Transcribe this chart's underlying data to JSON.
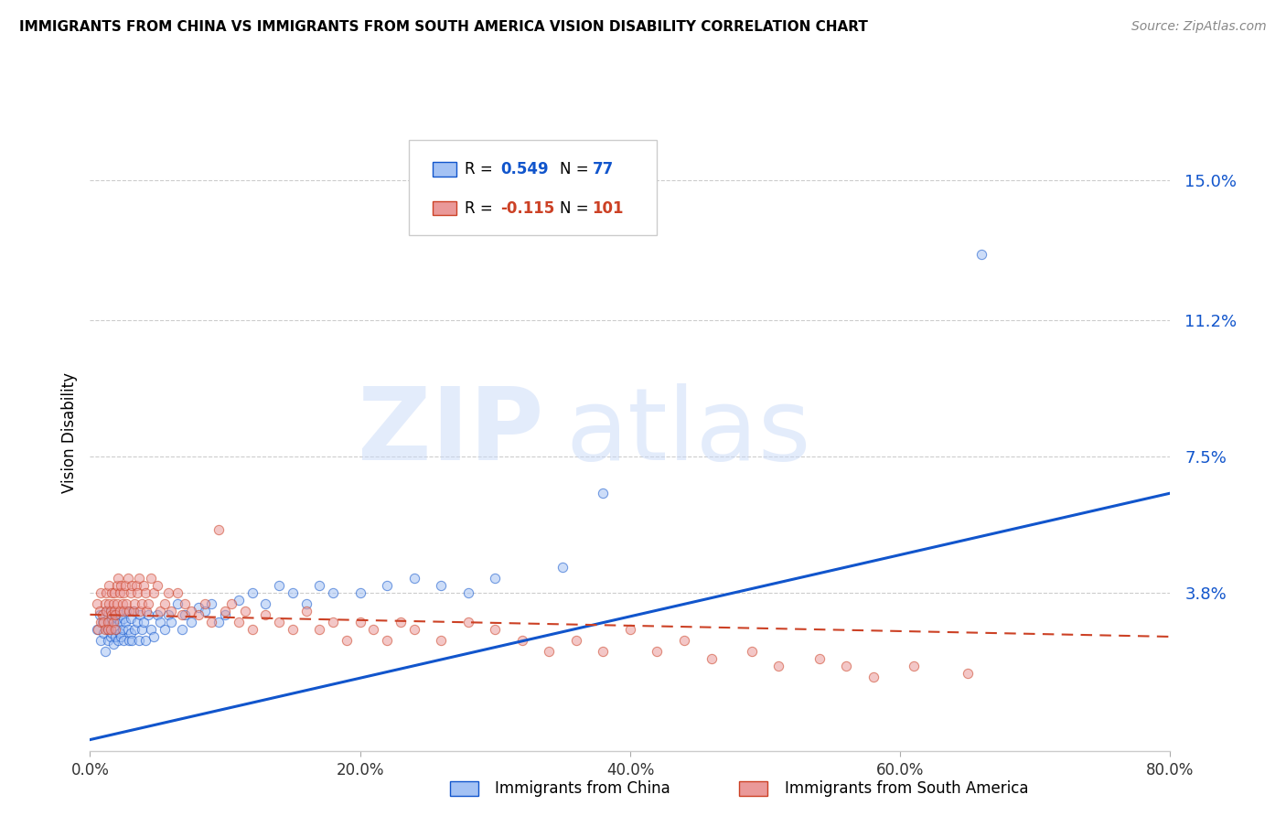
{
  "title": "IMMIGRANTS FROM CHINA VS IMMIGRANTS FROM SOUTH AMERICA VISION DISABILITY CORRELATION CHART",
  "source": "Source: ZipAtlas.com",
  "ylabel": "Vision Disability",
  "yticks": [
    0.038,
    0.075,
    0.112,
    0.15
  ],
  "ytick_labels": [
    "3.8%",
    "7.5%",
    "11.2%",
    "15.0%"
  ],
  "xlim": [
    0.0,
    0.8
  ],
  "ylim": [
    -0.005,
    0.168
  ],
  "china_R": 0.549,
  "china_N": 77,
  "sa_R": -0.115,
  "sa_N": 101,
  "china_color": "#a4c2f4",
  "sa_color": "#ea9999",
  "china_line_color": "#1155cc",
  "sa_line_color": "#cc4125",
  "watermark_zip": "ZIP",
  "watermark_atlas": "atlas",
  "xtick_labels": [
    "0.0%",
    "20.0%",
    "40.0%",
    "60.0%",
    "80.0%"
  ],
  "xtick_vals": [
    0.0,
    0.2,
    0.4,
    0.6,
    0.8
  ],
  "china_line_x0": 0.0,
  "china_line_y0": -0.002,
  "china_line_x1": 0.8,
  "china_line_y1": 0.065,
  "sa_line_x0": 0.0,
  "sa_line_y0": 0.032,
  "sa_line_x1": 0.8,
  "sa_line_y1": 0.026,
  "china_scatter_x": [
    0.005,
    0.007,
    0.008,
    0.009,
    0.01,
    0.011,
    0.012,
    0.013,
    0.013,
    0.014,
    0.015,
    0.015,
    0.016,
    0.016,
    0.017,
    0.018,
    0.018,
    0.019,
    0.02,
    0.02,
    0.021,
    0.022,
    0.022,
    0.023,
    0.023,
    0.024,
    0.025,
    0.025,
    0.026,
    0.027,
    0.028,
    0.029,
    0.03,
    0.03,
    0.031,
    0.032,
    0.033,
    0.035,
    0.036,
    0.037,
    0.038,
    0.04,
    0.041,
    0.043,
    0.045,
    0.047,
    0.05,
    0.052,
    0.055,
    0.058,
    0.06,
    0.065,
    0.068,
    0.07,
    0.075,
    0.08,
    0.085,
    0.09,
    0.095,
    0.1,
    0.11,
    0.12,
    0.13,
    0.14,
    0.15,
    0.16,
    0.17,
    0.18,
    0.2,
    0.22,
    0.24,
    0.26,
    0.28,
    0.3,
    0.35,
    0.38,
    0.66
  ],
  "china_scatter_y": [
    0.028,
    0.032,
    0.025,
    0.03,
    0.027,
    0.022,
    0.033,
    0.028,
    0.025,
    0.03,
    0.026,
    0.033,
    0.027,
    0.031,
    0.024,
    0.029,
    0.032,
    0.026,
    0.028,
    0.031,
    0.025,
    0.03,
    0.027,
    0.032,
    0.026,
    0.028,
    0.031,
    0.025,
    0.03,
    0.033,
    0.028,
    0.025,
    0.027,
    0.031,
    0.025,
    0.033,
    0.028,
    0.03,
    0.025,
    0.032,
    0.028,
    0.03,
    0.025,
    0.032,
    0.028,
    0.026,
    0.032,
    0.03,
    0.028,
    0.032,
    0.03,
    0.035,
    0.028,
    0.032,
    0.03,
    0.034,
    0.033,
    0.035,
    0.03,
    0.032,
    0.036,
    0.038,
    0.035,
    0.04,
    0.038,
    0.035,
    0.04,
    0.038,
    0.038,
    0.04,
    0.042,
    0.04,
    0.038,
    0.042,
    0.045,
    0.065,
    0.13
  ],
  "sa_scatter_x": [
    0.005,
    0.006,
    0.007,
    0.008,
    0.008,
    0.009,
    0.01,
    0.011,
    0.011,
    0.012,
    0.012,
    0.013,
    0.013,
    0.014,
    0.014,
    0.015,
    0.015,
    0.016,
    0.016,
    0.017,
    0.017,
    0.018,
    0.018,
    0.019,
    0.019,
    0.02,
    0.02,
    0.021,
    0.022,
    0.022,
    0.023,
    0.024,
    0.025,
    0.025,
    0.026,
    0.027,
    0.028,
    0.029,
    0.03,
    0.031,
    0.032,
    0.033,
    0.034,
    0.035,
    0.036,
    0.037,
    0.038,
    0.04,
    0.041,
    0.042,
    0.043,
    0.045,
    0.047,
    0.05,
    0.052,
    0.055,
    0.058,
    0.06,
    0.065,
    0.068,
    0.07,
    0.075,
    0.08,
    0.085,
    0.09,
    0.095,
    0.1,
    0.105,
    0.11,
    0.115,
    0.12,
    0.13,
    0.14,
    0.15,
    0.16,
    0.17,
    0.18,
    0.19,
    0.2,
    0.21,
    0.22,
    0.23,
    0.24,
    0.26,
    0.28,
    0.3,
    0.32,
    0.34,
    0.36,
    0.38,
    0.4,
    0.42,
    0.44,
    0.46,
    0.49,
    0.51,
    0.54,
    0.56,
    0.58,
    0.61,
    0.65
  ],
  "sa_scatter_y": [
    0.035,
    0.028,
    0.033,
    0.03,
    0.038,
    0.032,
    0.03,
    0.035,
    0.028,
    0.033,
    0.038,
    0.03,
    0.028,
    0.035,
    0.04,
    0.033,
    0.028,
    0.038,
    0.032,
    0.03,
    0.035,
    0.033,
    0.038,
    0.028,
    0.032,
    0.035,
    0.04,
    0.042,
    0.038,
    0.033,
    0.04,
    0.035,
    0.038,
    0.033,
    0.04,
    0.035,
    0.042,
    0.033,
    0.038,
    0.04,
    0.033,
    0.035,
    0.04,
    0.038,
    0.042,
    0.033,
    0.035,
    0.04,
    0.038,
    0.033,
    0.035,
    0.042,
    0.038,
    0.04,
    0.033,
    0.035,
    0.038,
    0.033,
    0.038,
    0.032,
    0.035,
    0.033,
    0.032,
    0.035,
    0.03,
    0.055,
    0.033,
    0.035,
    0.03,
    0.033,
    0.028,
    0.032,
    0.03,
    0.028,
    0.033,
    0.028,
    0.03,
    0.025,
    0.03,
    0.028,
    0.025,
    0.03,
    0.028,
    0.025,
    0.03,
    0.028,
    0.025,
    0.022,
    0.025,
    0.022,
    0.028,
    0.022,
    0.025,
    0.02,
    0.022,
    0.018,
    0.02,
    0.018,
    0.015,
    0.018,
    0.016
  ]
}
